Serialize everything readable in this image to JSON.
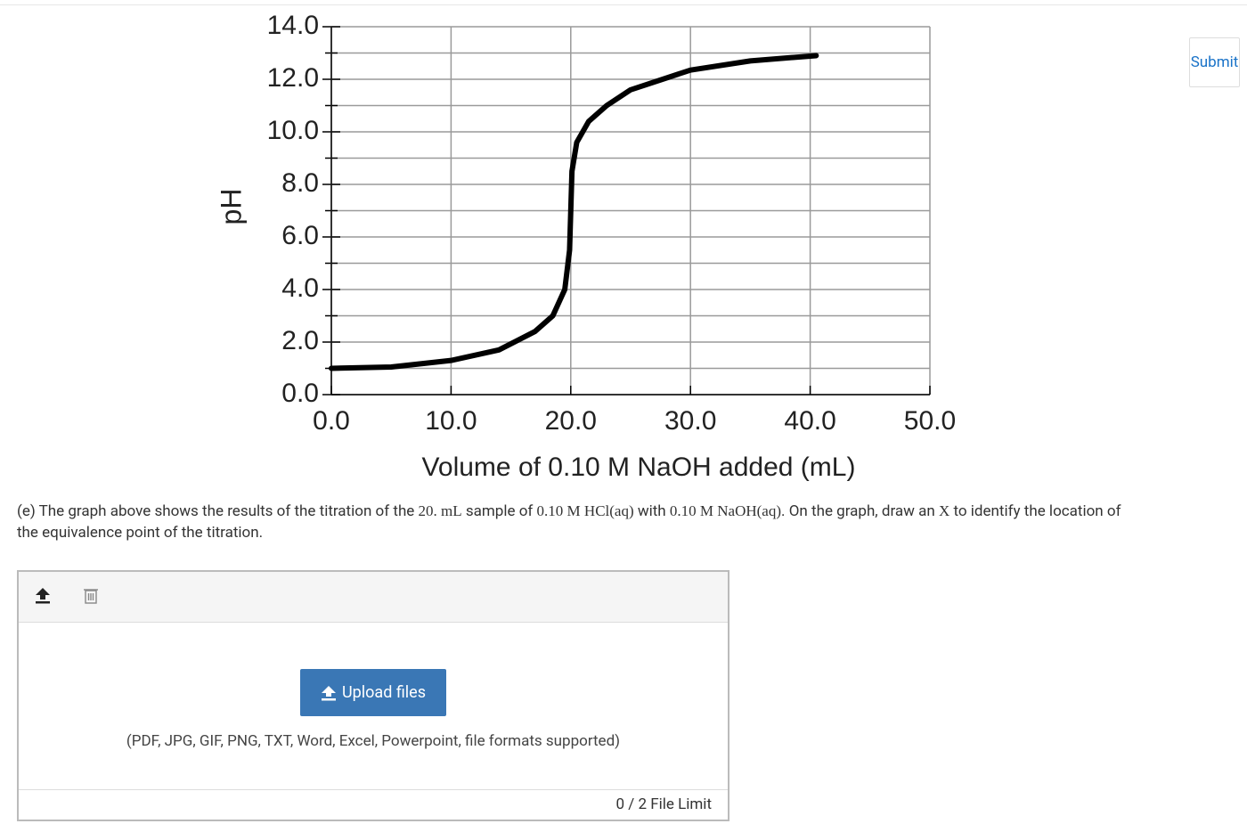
{
  "chart_data": {
    "type": "line",
    "y_label": "pH",
    "x_label": "Volume of 0.10 M NaOH added (mL)",
    "xlim": [
      0,
      50
    ],
    "ylim": [
      0,
      14
    ],
    "xticks": [
      {
        "value": 0,
        "label": "0.0"
      },
      {
        "value": 10,
        "label": "10.0"
      },
      {
        "value": 20,
        "label": "20.0"
      },
      {
        "value": 30,
        "label": "30.0"
      },
      {
        "value": 40,
        "label": "40.0"
      },
      {
        "value": 50,
        "label": "50.0"
      }
    ],
    "yticks": [
      {
        "value": 0,
        "label": "0.0"
      },
      {
        "value": 2,
        "label": "2.0"
      },
      {
        "value": 4,
        "label": "4.0"
      },
      {
        "value": 6,
        "label": "6.0"
      },
      {
        "value": 8,
        "label": "8.0"
      },
      {
        "value": 10,
        "label": "10.0"
      },
      {
        "value": 12,
        "label": "12.0"
      },
      {
        "value": 14,
        "label": "14.0"
      }
    ],
    "yminorticks": [
      1,
      3,
      5,
      7,
      9,
      11,
      13
    ],
    "grid": true,
    "x": [
      0,
      5,
      10,
      14,
      17,
      18.5,
      19.5,
      19.9,
      20,
      20.1,
      20.5,
      21.5,
      23,
      25,
      30,
      35,
      40.5
    ],
    "series": [
      {
        "color": "#000000",
        "values": [
          1.0,
          1.05,
          1.3,
          1.7,
          2.4,
          3.0,
          4.0,
          5.5,
          7.0,
          8.5,
          9.6,
          10.4,
          11.0,
          11.6,
          12.35,
          12.7,
          12.9
        ]
      }
    ]
  },
  "question": {
    "parts": [
      "(e) The graph above shows the results of the titration of the ",
      "20. mL",
      " sample of ",
      "0.10 M HCl(aq)",
      " with ",
      "0.10 M NaOH(aq)",
      ". On the graph, draw an ",
      "X",
      " to identify the location of the equivalence point of the titration."
    ]
  },
  "submit": "Submit",
  "upload": {
    "button": "Upload files",
    "formats": "(PDF, JPG, GIF, PNG, TXT, Word, Excel, Powerpoint, file formats supported)",
    "limit": "0 / 2 File Limit"
  }
}
